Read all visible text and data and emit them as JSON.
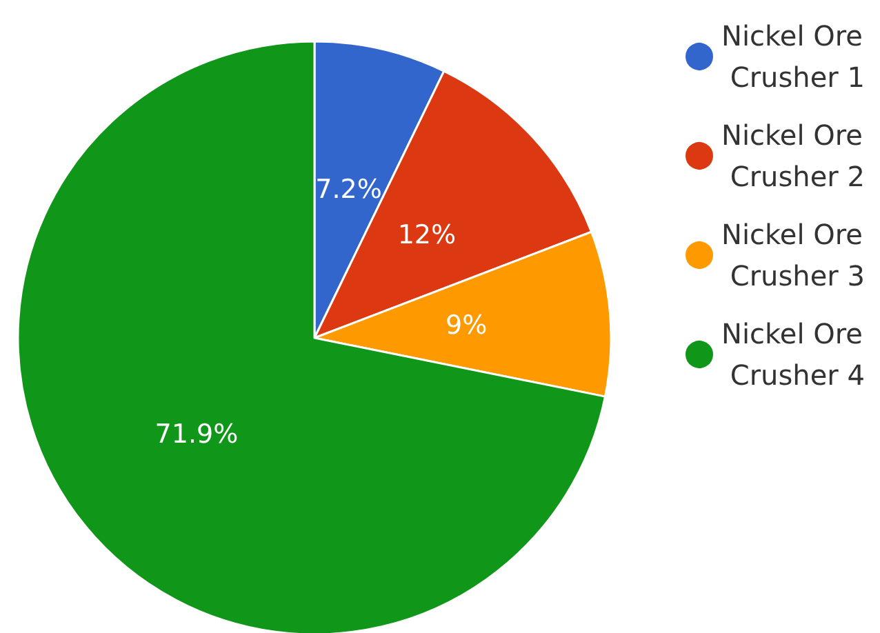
{
  "chart_data": {
    "type": "pie",
    "categories": [
      "Nickel Ore Crusher 1",
      "Nickel Ore Crusher 2",
      "Nickel Ore Crusher 3",
      "Nickel Ore Crusher 4"
    ],
    "values": [
      7.2,
      12,
      9,
      71.9
    ],
    "colors": [
      "#3366cc",
      "#dc3912",
      "#ff9900",
      "#109618"
    ],
    "value_labels": [
      "7.2%",
      "12%",
      "9%",
      "71.9%"
    ],
    "legend": "top right"
  }
}
